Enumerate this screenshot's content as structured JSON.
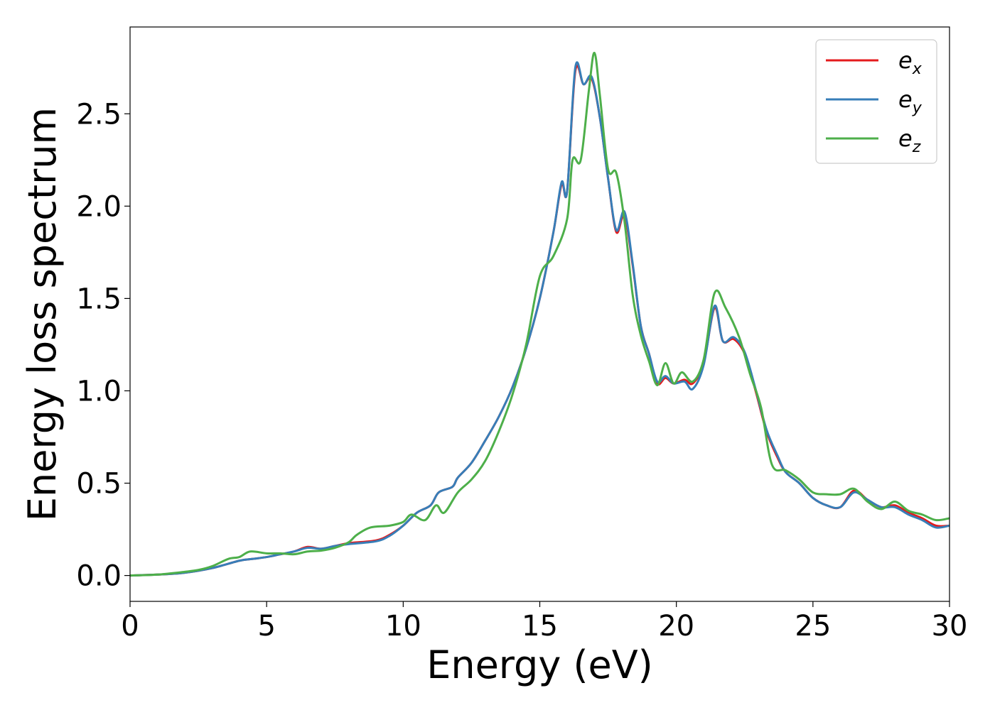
{
  "chart_data": {
    "type": "line",
    "title": "",
    "xlabel": "Energy (eV)",
    "ylabel": "Energy loss spectrum",
    "xlim": [
      0,
      30
    ],
    "ylim": [
      -0.14,
      2.97
    ],
    "xticks": [
      0,
      5,
      10,
      15,
      20,
      25,
      30
    ],
    "xtick_labels": [
      "0",
      "5",
      "10",
      "15",
      "20",
      "25",
      "30"
    ],
    "yticks": [
      0.0,
      0.5,
      1.0,
      1.5,
      2.0,
      2.5
    ],
    "ytick_labels": [
      "0.0",
      "0.5",
      "1.0",
      "1.5",
      "2.0",
      "2.5"
    ],
    "grid": false,
    "legend_position": "top-right",
    "series": [
      {
        "name": "e_x",
        "label_main": "e",
        "label_sub": "x",
        "color": "#e41a1c",
        "points": [
          [
            0,
            0
          ],
          [
            1,
            0.005
          ],
          [
            2,
            0.015
          ],
          [
            3,
            0.04
          ],
          [
            4,
            0.08
          ],
          [
            4.5,
            0.09
          ],
          [
            5,
            0.1
          ],
          [
            5.5,
            0.115
          ],
          [
            6,
            0.13
          ],
          [
            6.5,
            0.155
          ],
          [
            7,
            0.145
          ],
          [
            7.5,
            0.16
          ],
          [
            8,
            0.175
          ],
          [
            9,
            0.19
          ],
          [
            9.5,
            0.22
          ],
          [
            10,
            0.27
          ],
          [
            10.5,
            0.34
          ],
          [
            11,
            0.38
          ],
          [
            11.3,
            0.45
          ],
          [
            11.8,
            0.48
          ],
          [
            12,
            0.53
          ],
          [
            12.5,
            0.61
          ],
          [
            13,
            0.73
          ],
          [
            13.5,
            0.86
          ],
          [
            14,
            1.02
          ],
          [
            14.5,
            1.23
          ],
          [
            15,
            1.5
          ],
          [
            15.5,
            1.86
          ],
          [
            15.8,
            2.12
          ],
          [
            16,
            2.08
          ],
          [
            16.3,
            2.73
          ],
          [
            16.6,
            2.66
          ],
          [
            16.9,
            2.69
          ],
          [
            17.2,
            2.48
          ],
          [
            17.5,
            2.15
          ],
          [
            17.8,
            1.86
          ],
          [
            18.1,
            1.95
          ],
          [
            18.4,
            1.68
          ],
          [
            18.7,
            1.35
          ],
          [
            19,
            1.2
          ],
          [
            19.3,
            1.04
          ],
          [
            19.6,
            1.07
          ],
          [
            19.9,
            1.04
          ],
          [
            20.3,
            1.06
          ],
          [
            20.6,
            1.04
          ],
          [
            21,
            1.15
          ],
          [
            21.4,
            1.45
          ],
          [
            21.7,
            1.27
          ],
          [
            22.1,
            1.28
          ],
          [
            22.5,
            1.2
          ],
          [
            22.9,
            1.0
          ],
          [
            23.3,
            0.78
          ],
          [
            23.7,
            0.64
          ],
          [
            24,
            0.56
          ],
          [
            24.5,
            0.5
          ],
          [
            25,
            0.42
          ],
          [
            25.5,
            0.38
          ],
          [
            26,
            0.37
          ],
          [
            26.5,
            0.46
          ],
          [
            27,
            0.41
          ],
          [
            27.5,
            0.37
          ],
          [
            28,
            0.38
          ],
          [
            28.5,
            0.34
          ],
          [
            29,
            0.31
          ],
          [
            29.5,
            0.27
          ],
          [
            30,
            0.27
          ]
        ]
      },
      {
        "name": "e_y",
        "label_main": "e",
        "label_sub": "y",
        "color": "#377eb8",
        "points": [
          [
            0,
            0
          ],
          [
            1,
            0.005
          ],
          [
            2,
            0.015
          ],
          [
            3,
            0.04
          ],
          [
            4,
            0.08
          ],
          [
            4.5,
            0.09
          ],
          [
            5,
            0.1
          ],
          [
            5.5,
            0.115
          ],
          [
            6,
            0.13
          ],
          [
            6.5,
            0.15
          ],
          [
            7,
            0.145
          ],
          [
            7.5,
            0.16
          ],
          [
            8,
            0.17
          ],
          [
            9,
            0.185
          ],
          [
            9.5,
            0.215
          ],
          [
            10,
            0.27
          ],
          [
            10.5,
            0.34
          ],
          [
            11,
            0.38
          ],
          [
            11.3,
            0.45
          ],
          [
            11.8,
            0.48
          ],
          [
            12,
            0.53
          ],
          [
            12.5,
            0.61
          ],
          [
            13,
            0.73
          ],
          [
            13.5,
            0.86
          ],
          [
            14,
            1.02
          ],
          [
            14.5,
            1.23
          ],
          [
            15,
            1.5
          ],
          [
            15.5,
            1.86
          ],
          [
            15.8,
            2.13
          ],
          [
            16,
            2.08
          ],
          [
            16.3,
            2.75
          ],
          [
            16.6,
            2.66
          ],
          [
            16.9,
            2.7
          ],
          [
            17.2,
            2.48
          ],
          [
            17.5,
            2.15
          ],
          [
            17.8,
            1.87
          ],
          [
            18.1,
            1.97
          ],
          [
            18.4,
            1.69
          ],
          [
            18.7,
            1.35
          ],
          [
            19,
            1.2
          ],
          [
            19.3,
            1.05
          ],
          [
            19.6,
            1.08
          ],
          [
            19.9,
            1.04
          ],
          [
            20.3,
            1.05
          ],
          [
            20.6,
            1.01
          ],
          [
            21,
            1.14
          ],
          [
            21.4,
            1.46
          ],
          [
            21.7,
            1.27
          ],
          [
            22.1,
            1.29
          ],
          [
            22.5,
            1.21
          ],
          [
            22.9,
            1.01
          ],
          [
            23.3,
            0.79
          ],
          [
            23.7,
            0.65
          ],
          [
            24,
            0.56
          ],
          [
            24.5,
            0.5
          ],
          [
            25,
            0.42
          ],
          [
            25.5,
            0.38
          ],
          [
            26,
            0.37
          ],
          [
            26.5,
            0.45
          ],
          [
            27,
            0.41
          ],
          [
            27.5,
            0.37
          ],
          [
            28,
            0.37
          ],
          [
            28.5,
            0.33
          ],
          [
            29,
            0.3
          ],
          [
            29.5,
            0.26
          ],
          [
            30,
            0.27
          ]
        ]
      },
      {
        "name": "e_z",
        "label_main": "e",
        "label_sub": "z",
        "color": "#4daf4a",
        "points": [
          [
            0,
            0
          ],
          [
            1,
            0.005
          ],
          [
            2,
            0.02
          ],
          [
            2.5,
            0.03
          ],
          [
            3,
            0.05
          ],
          [
            3.6,
            0.09
          ],
          [
            4,
            0.1
          ],
          [
            4.4,
            0.13
          ],
          [
            5,
            0.12
          ],
          [
            5.5,
            0.12
          ],
          [
            6,
            0.115
          ],
          [
            6.5,
            0.13
          ],
          [
            7,
            0.135
          ],
          [
            7.5,
            0.15
          ],
          [
            8,
            0.18
          ],
          [
            8.3,
            0.22
          ],
          [
            8.8,
            0.26
          ],
          [
            9.5,
            0.27
          ],
          [
            10,
            0.29
          ],
          [
            10.3,
            0.33
          ],
          [
            10.8,
            0.3
          ],
          [
            11.2,
            0.38
          ],
          [
            11.5,
            0.34
          ],
          [
            12,
            0.45
          ],
          [
            12.5,
            0.52
          ],
          [
            13,
            0.62
          ],
          [
            13.5,
            0.78
          ],
          [
            14,
            0.98
          ],
          [
            14.5,
            1.25
          ],
          [
            15,
            1.62
          ],
          [
            15.5,
            1.73
          ],
          [
            16,
            1.93
          ],
          [
            16.2,
            2.25
          ],
          [
            16.5,
            2.25
          ],
          [
            16.8,
            2.63
          ],
          [
            17,
            2.83
          ],
          [
            17.2,
            2.6
          ],
          [
            17.5,
            2.2
          ],
          [
            17.8,
            2.18
          ],
          [
            18.1,
            1.92
          ],
          [
            18.4,
            1.52
          ],
          [
            18.7,
            1.3
          ],
          [
            19,
            1.16
          ],
          [
            19.3,
            1.03
          ],
          [
            19.6,
            1.15
          ],
          [
            19.9,
            1.04
          ],
          [
            20.2,
            1.1
          ],
          [
            20.6,
            1.05
          ],
          [
            21,
            1.17
          ],
          [
            21.4,
            1.53
          ],
          [
            21.8,
            1.45
          ],
          [
            22.3,
            1.29
          ],
          [
            22.7,
            1.09
          ],
          [
            23.1,
            0.91
          ],
          [
            23.5,
            0.6
          ],
          [
            24,
            0.57
          ],
          [
            24.5,
            0.52
          ],
          [
            25,
            0.45
          ],
          [
            25.5,
            0.44
          ],
          [
            26,
            0.44
          ],
          [
            26.5,
            0.47
          ],
          [
            27,
            0.4
          ],
          [
            27.5,
            0.36
          ],
          [
            28,
            0.4
          ],
          [
            28.5,
            0.35
          ],
          [
            29,
            0.33
          ],
          [
            29.5,
            0.3
          ],
          [
            30,
            0.31
          ]
        ]
      }
    ]
  }
}
